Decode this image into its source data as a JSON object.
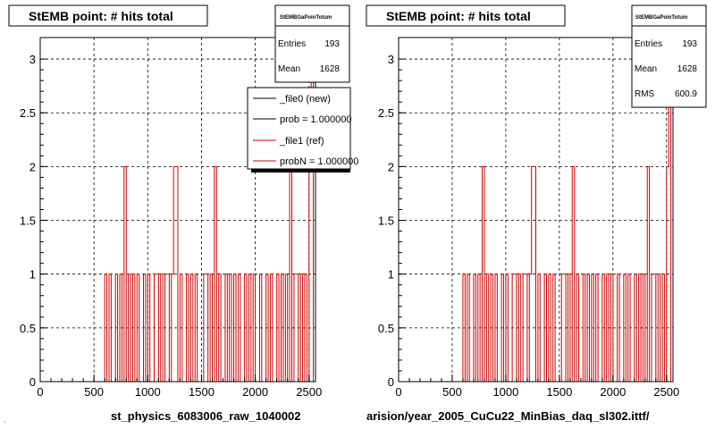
{
  "colors": {
    "new": "#000000",
    "ref": "#cc0000",
    "grid": "#000000",
    "frame": "#000000"
  },
  "corner_text": "~",
  "chart_data": [
    {
      "type": "line",
      "title": "StEMB point: # hits total",
      "xlabel": "st_physics_6083006_raw_1040002",
      "ylabel": "",
      "xlim": [
        0,
        2560
      ],
      "ylim": [
        0,
        3.2
      ],
      "xticks": [
        0,
        500,
        1000,
        1500,
        2000,
        2500
      ],
      "yticks": [
        0,
        0.5,
        1,
        1.5,
        2,
        2.5,
        3
      ],
      "grid": true,
      "stats": {
        "title": "StEMBGaPoinTotum",
        "rows": [
          {
            "label": "Entries",
            "value": "193"
          },
          {
            "label": "Mean",
            "value": "1628"
          }
        ]
      },
      "legend": {
        "placement": "top-right",
        "entries": [
          {
            "label": "_file0 (new)",
            "color": "#000000"
          },
          {
            "label": "prob = 1.000000",
            "color": "#000000"
          },
          {
            "label": "_file1 (ref)",
            "color": "#cc0000"
          },
          {
            "label": "probN = 1.000000",
            "color": "#cc0000"
          }
        ]
      },
      "series": [
        {
          "values": [
            {
              "x": 80,
              "y": 0
            },
            {
              "x": 580,
              "y": 0
            },
            {
              "x": 600,
              "y": 1
            },
            {
              "x": 620,
              "y": 0
            },
            {
              "x": 640,
              "y": 1
            },
            {
              "x": 660,
              "y": 0
            },
            {
              "x": 700,
              "y": 1
            },
            {
              "x": 720,
              "y": 0
            },
            {
              "x": 740,
              "y": 1
            },
            {
              "x": 760,
              "y": 0
            },
            {
              "x": 780,
              "y": 2
            },
            {
              "x": 800,
              "y": 0
            },
            {
              "x": 820,
              "y": 1
            },
            {
              "x": 840,
              "y": 0
            },
            {
              "x": 860,
              "y": 1
            },
            {
              "x": 880,
              "y": 0
            },
            {
              "x": 900,
              "y": 1
            },
            {
              "x": 920,
              "y": 0
            },
            {
              "x": 960,
              "y": 1
            },
            {
              "x": 980,
              "y": 0
            },
            {
              "x": 1000,
              "y": 1
            },
            {
              "x": 1020,
              "y": 0
            },
            {
              "x": 1060,
              "y": 1
            },
            {
              "x": 1080,
              "y": 1
            },
            {
              "x": 1100,
              "y": 0
            },
            {
              "x": 1120,
              "y": 1
            },
            {
              "x": 1140,
              "y": 0
            },
            {
              "x": 1160,
              "y": 1
            },
            {
              "x": 1180,
              "y": 1
            },
            {
              "x": 1200,
              "y": 0
            },
            {
              "x": 1220,
              "y": 1
            },
            {
              "x": 1240,
              "y": 2
            },
            {
              "x": 1260,
              "y": 2
            },
            {
              "x": 1280,
              "y": 0
            },
            {
              "x": 1300,
              "y": 1
            },
            {
              "x": 1320,
              "y": 0
            },
            {
              "x": 1360,
              "y": 1
            },
            {
              "x": 1380,
              "y": 0
            },
            {
              "x": 1400,
              "y": 1
            },
            {
              "x": 1420,
              "y": 0
            },
            {
              "x": 1440,
              "y": 1
            },
            {
              "x": 1460,
              "y": 0
            },
            {
              "x": 1520,
              "y": 1
            },
            {
              "x": 1540,
              "y": 1
            },
            {
              "x": 1560,
              "y": 0
            },
            {
              "x": 1580,
              "y": 1
            },
            {
              "x": 1600,
              "y": 0
            },
            {
              "x": 1620,
              "y": 2
            },
            {
              "x": 1640,
              "y": 0
            },
            {
              "x": 1660,
              "y": 1
            },
            {
              "x": 1680,
              "y": 0
            },
            {
              "x": 1720,
              "y": 1
            },
            {
              "x": 1740,
              "y": 0
            },
            {
              "x": 1760,
              "y": 1
            },
            {
              "x": 1780,
              "y": 0
            },
            {
              "x": 1800,
              "y": 1
            },
            {
              "x": 1820,
              "y": 0
            },
            {
              "x": 1840,
              "y": 1
            },
            {
              "x": 1860,
              "y": 0
            },
            {
              "x": 1900,
              "y": 1
            },
            {
              "x": 1920,
              "y": 0
            },
            {
              "x": 1940,
              "y": 1
            },
            {
              "x": 1960,
              "y": 0
            },
            {
              "x": 1980,
              "y": 1
            },
            {
              "x": 2000,
              "y": 0
            },
            {
              "x": 2040,
              "y": 1
            },
            {
              "x": 2060,
              "y": 0
            },
            {
              "x": 2100,
              "y": 1
            },
            {
              "x": 2120,
              "y": 0
            },
            {
              "x": 2140,
              "y": 1
            },
            {
              "x": 2160,
              "y": 0
            },
            {
              "x": 2200,
              "y": 1
            },
            {
              "x": 2220,
              "y": 0
            },
            {
              "x": 2240,
              "y": 1
            },
            {
              "x": 2260,
              "y": 0
            },
            {
              "x": 2280,
              "y": 1
            },
            {
              "x": 2300,
              "y": 0
            },
            {
              "x": 2320,
              "y": 2
            },
            {
              "x": 2340,
              "y": 0
            },
            {
              "x": 2360,
              "y": 1
            },
            {
              "x": 2380,
              "y": 1
            },
            {
              "x": 2400,
              "y": 0
            },
            {
              "x": 2420,
              "y": 1
            },
            {
              "x": 2440,
              "y": 0
            },
            {
              "x": 2460,
              "y": 1
            },
            {
              "x": 2480,
              "y": 0
            },
            {
              "x": 2500,
              "y": 2
            },
            {
              "x": 2520,
              "y": 3
            },
            {
              "x": 2540,
              "y": 0
            }
          ]
        }
      ]
    },
    {
      "type": "line",
      "title": "StEMB point: # hits total",
      "xlabel": "arision/year_2005_CuCu22_MinBias_daq_sl302.ittf/",
      "ylabel": "",
      "xlim": [
        0,
        2560
      ],
      "ylim": [
        0,
        3.2
      ],
      "xticks": [
        0,
        500,
        1000,
        1500,
        2000,
        2500
      ],
      "yticks": [
        0,
        0.5,
        1,
        1.5,
        2,
        2.5,
        3
      ],
      "grid": true,
      "stats": {
        "title": "StEMBGaPoinTotum",
        "rows": [
          {
            "label": "Entries",
            "value": "193"
          },
          {
            "label": "Mean",
            "value": "1628"
          },
          {
            "label": "RMS",
            "value": "600.9"
          }
        ]
      },
      "series": [
        {
          "values": [
            {
              "x": 80,
              "y": 0
            },
            {
              "x": 580,
              "y": 0
            },
            {
              "x": 600,
              "y": 1
            },
            {
              "x": 620,
              "y": 0
            },
            {
              "x": 640,
              "y": 1
            },
            {
              "x": 660,
              "y": 0
            },
            {
              "x": 700,
              "y": 1
            },
            {
              "x": 720,
              "y": 0
            },
            {
              "x": 740,
              "y": 1
            },
            {
              "x": 760,
              "y": 0
            },
            {
              "x": 780,
              "y": 2
            },
            {
              "x": 800,
              "y": 0
            },
            {
              "x": 820,
              "y": 1
            },
            {
              "x": 840,
              "y": 0
            },
            {
              "x": 860,
              "y": 1
            },
            {
              "x": 880,
              "y": 0
            },
            {
              "x": 900,
              "y": 1
            },
            {
              "x": 920,
              "y": 0
            },
            {
              "x": 960,
              "y": 1
            },
            {
              "x": 980,
              "y": 0
            },
            {
              "x": 1000,
              "y": 1
            },
            {
              "x": 1020,
              "y": 0
            },
            {
              "x": 1060,
              "y": 1
            },
            {
              "x": 1080,
              "y": 1
            },
            {
              "x": 1100,
              "y": 0
            },
            {
              "x": 1120,
              "y": 1
            },
            {
              "x": 1140,
              "y": 0
            },
            {
              "x": 1160,
              "y": 1
            },
            {
              "x": 1180,
              "y": 1
            },
            {
              "x": 1200,
              "y": 0
            },
            {
              "x": 1220,
              "y": 1
            },
            {
              "x": 1240,
              "y": 2
            },
            {
              "x": 1260,
              "y": 2
            },
            {
              "x": 1280,
              "y": 0
            },
            {
              "x": 1300,
              "y": 1
            },
            {
              "x": 1320,
              "y": 0
            },
            {
              "x": 1360,
              "y": 1
            },
            {
              "x": 1380,
              "y": 0
            },
            {
              "x": 1400,
              "y": 1
            },
            {
              "x": 1420,
              "y": 0
            },
            {
              "x": 1440,
              "y": 1
            },
            {
              "x": 1460,
              "y": 0
            },
            {
              "x": 1520,
              "y": 1
            },
            {
              "x": 1540,
              "y": 1
            },
            {
              "x": 1560,
              "y": 0
            },
            {
              "x": 1580,
              "y": 1
            },
            {
              "x": 1600,
              "y": 0
            },
            {
              "x": 1620,
              "y": 2
            },
            {
              "x": 1640,
              "y": 0
            },
            {
              "x": 1660,
              "y": 1
            },
            {
              "x": 1680,
              "y": 0
            },
            {
              "x": 1720,
              "y": 1
            },
            {
              "x": 1740,
              "y": 0
            },
            {
              "x": 1760,
              "y": 1
            },
            {
              "x": 1780,
              "y": 0
            },
            {
              "x": 1800,
              "y": 1
            },
            {
              "x": 1820,
              "y": 0
            },
            {
              "x": 1840,
              "y": 1
            },
            {
              "x": 1860,
              "y": 0
            },
            {
              "x": 1900,
              "y": 1
            },
            {
              "x": 1920,
              "y": 0
            },
            {
              "x": 1940,
              "y": 1
            },
            {
              "x": 1960,
              "y": 0
            },
            {
              "x": 1980,
              "y": 1
            },
            {
              "x": 2000,
              "y": 0
            },
            {
              "x": 2040,
              "y": 1
            },
            {
              "x": 2060,
              "y": 0
            },
            {
              "x": 2100,
              "y": 1
            },
            {
              "x": 2120,
              "y": 0
            },
            {
              "x": 2140,
              "y": 1
            },
            {
              "x": 2160,
              "y": 0
            },
            {
              "x": 2200,
              "y": 1
            },
            {
              "x": 2220,
              "y": 0
            },
            {
              "x": 2240,
              "y": 1
            },
            {
              "x": 2260,
              "y": 0
            },
            {
              "x": 2280,
              "y": 1
            },
            {
              "x": 2300,
              "y": 0
            },
            {
              "x": 2320,
              "y": 2
            },
            {
              "x": 2340,
              "y": 0
            },
            {
              "x": 2360,
              "y": 1
            },
            {
              "x": 2380,
              "y": 1
            },
            {
              "x": 2400,
              "y": 0
            },
            {
              "x": 2420,
              "y": 1
            },
            {
              "x": 2440,
              "y": 0
            },
            {
              "x": 2460,
              "y": 1
            },
            {
              "x": 2480,
              "y": 0
            },
            {
              "x": 2500,
              "y": 2
            },
            {
              "x": 2520,
              "y": 3
            },
            {
              "x": 2540,
              "y": 0
            }
          ]
        }
      ]
    }
  ]
}
